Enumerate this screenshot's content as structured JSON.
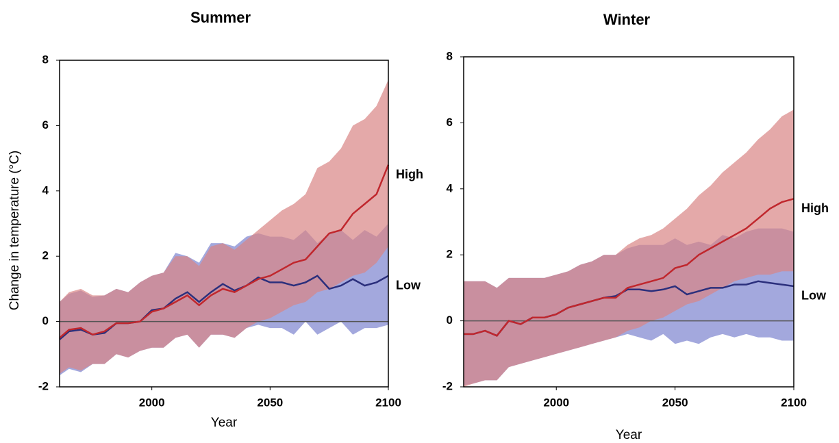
{
  "chart_data": [
    {
      "type": "band-line",
      "title": "Summer",
      "xlabel": "Year",
      "ylabel": "Change in temperature (°C)",
      "x": [
        1961,
        1965,
        1970,
        1975,
        1980,
        1985,
        1990,
        1995,
        2000,
        2005,
        2010,
        2015,
        2020,
        2025,
        2030,
        2035,
        2040,
        2045,
        2050,
        2055,
        2060,
        2065,
        2070,
        2075,
        2080,
        2085,
        2090,
        2095,
        2100
      ],
      "xlim": [
        1961,
        2100
      ],
      "xticks": [
        2000,
        2050,
        2100
      ],
      "ylim": [
        -2,
        8
      ],
      "yticks": [
        -2,
        0,
        2,
        4,
        6,
        8
      ],
      "series": [
        {
          "name": "Low",
          "color": "#2b2f7c",
          "band_color": "#7c83cf",
          "values": [
            -0.55,
            -0.3,
            -0.25,
            -0.4,
            -0.35,
            -0.05,
            -0.05,
            0.0,
            0.35,
            0.4,
            0.7,
            0.9,
            0.6,
            0.9,
            1.15,
            0.95,
            1.1,
            1.35,
            1.2,
            1.2,
            1.1,
            1.2,
            1.4,
            1.0,
            1.1,
            1.3,
            1.1,
            1.2,
            1.4
          ],
          "upper": [
            0.6,
            0.85,
            0.95,
            0.75,
            0.8,
            1.0,
            0.9,
            1.2,
            1.4,
            1.5,
            2.1,
            2.0,
            1.8,
            2.4,
            2.4,
            2.3,
            2.6,
            2.7,
            2.6,
            2.6,
            2.5,
            2.8,
            2.4,
            2.7,
            2.8,
            2.5,
            2.8,
            2.6,
            3.0
          ],
          "lower": [
            -1.65,
            -1.45,
            -1.55,
            -1.3,
            -1.3,
            -1.0,
            -1.1,
            -0.9,
            -0.8,
            -0.8,
            -0.5,
            -0.4,
            -0.8,
            -0.4,
            -0.4,
            -0.5,
            -0.2,
            -0.1,
            -0.2,
            -0.2,
            -0.4,
            0.0,
            -0.4,
            -0.2,
            0.0,
            -0.4,
            -0.2,
            -0.2,
            -0.1
          ]
        },
        {
          "name": "High",
          "color": "#c0272d",
          "band_color": "#d98585",
          "values": [
            -0.5,
            -0.25,
            -0.2,
            -0.4,
            -0.3,
            -0.05,
            -0.05,
            0.0,
            0.3,
            0.4,
            0.6,
            0.8,
            0.5,
            0.8,
            1.0,
            0.9,
            1.1,
            1.3,
            1.4,
            1.6,
            1.8,
            1.9,
            2.3,
            2.7,
            2.8,
            3.3,
            3.6,
            3.9,
            4.8
          ],
          "upper": [
            0.6,
            0.9,
            1.0,
            0.8,
            0.8,
            1.0,
            0.9,
            1.2,
            1.4,
            1.5,
            2.0,
            2.0,
            1.7,
            2.3,
            2.4,
            2.2,
            2.5,
            2.8,
            3.1,
            3.4,
            3.6,
            3.9,
            4.7,
            4.9,
            5.3,
            6.0,
            6.2,
            6.6,
            7.4
          ],
          "lower": [
            -1.6,
            -1.4,
            -1.5,
            -1.3,
            -1.3,
            -1.0,
            -1.1,
            -0.9,
            -0.8,
            -0.8,
            -0.5,
            -0.4,
            -0.8,
            -0.4,
            -0.4,
            -0.5,
            -0.2,
            0.0,
            0.1,
            0.3,
            0.5,
            0.6,
            0.9,
            1.0,
            1.2,
            1.4,
            1.5,
            1.8,
            2.3
          ]
        }
      ]
    },
    {
      "type": "band-line",
      "title": "Winter",
      "xlabel": "Year",
      "x": [
        1961,
        1965,
        1970,
        1975,
        1980,
        1985,
        1990,
        1995,
        2000,
        2005,
        2010,
        2015,
        2020,
        2025,
        2030,
        2035,
        2040,
        2045,
        2050,
        2055,
        2060,
        2065,
        2070,
        2075,
        2080,
        2085,
        2090,
        2095,
        2100
      ],
      "xlim": [
        1961,
        2100
      ],
      "xticks": [
        2000,
        2050,
        2100
      ],
      "ylim": [
        -2,
        8
      ],
      "yticks": [
        -2,
        0,
        2,
        4,
        6,
        8
      ],
      "series": [
        {
          "name": "Low",
          "color": "#2b2f7c",
          "band_color": "#7c83cf",
          "values": [
            -0.4,
            -0.4,
            -0.3,
            -0.45,
            0.0,
            -0.1,
            0.1,
            0.1,
            0.2,
            0.4,
            0.5,
            0.6,
            0.7,
            0.75,
            0.95,
            0.95,
            0.9,
            0.95,
            1.05,
            0.8,
            0.9,
            1.0,
            1.0,
            1.1,
            1.1,
            1.2,
            1.15,
            1.1,
            1.05
          ],
          "upper": [
            1.2,
            1.2,
            1.2,
            1.0,
            1.3,
            1.3,
            1.3,
            1.3,
            1.4,
            1.5,
            1.7,
            1.8,
            2.0,
            2.0,
            2.2,
            2.3,
            2.3,
            2.3,
            2.5,
            2.3,
            2.4,
            2.3,
            2.6,
            2.5,
            2.7,
            2.8,
            2.8,
            2.8,
            2.7
          ],
          "lower": [
            -1.95,
            -1.9,
            -1.8,
            -1.8,
            -1.4,
            -1.3,
            -1.2,
            -1.1,
            -1.0,
            -0.9,
            -0.8,
            -0.7,
            -0.6,
            -0.5,
            -0.4,
            -0.5,
            -0.6,
            -0.4,
            -0.7,
            -0.6,
            -0.7,
            -0.5,
            -0.4,
            -0.5,
            -0.4,
            -0.5,
            -0.5,
            -0.6,
            -0.6
          ]
        },
        {
          "name": "High",
          "color": "#c0272d",
          "band_color": "#d98585",
          "values": [
            -0.4,
            -0.4,
            -0.3,
            -0.45,
            0.0,
            -0.1,
            0.1,
            0.1,
            0.2,
            0.4,
            0.5,
            0.6,
            0.7,
            0.7,
            1.0,
            1.1,
            1.2,
            1.3,
            1.6,
            1.7,
            2.0,
            2.2,
            2.4,
            2.6,
            2.8,
            3.1,
            3.4,
            3.6,
            3.7
          ],
          "upper": [
            1.2,
            1.2,
            1.2,
            1.0,
            1.3,
            1.3,
            1.3,
            1.3,
            1.4,
            1.5,
            1.7,
            1.8,
            2.0,
            2.0,
            2.3,
            2.5,
            2.6,
            2.8,
            3.1,
            3.4,
            3.8,
            4.1,
            4.5,
            4.8,
            5.1,
            5.5,
            5.8,
            6.2,
            6.4
          ],
          "lower": [
            -2.0,
            -1.9,
            -1.8,
            -1.8,
            -1.4,
            -1.3,
            -1.2,
            -1.1,
            -1.0,
            -0.9,
            -0.8,
            -0.7,
            -0.6,
            -0.5,
            -0.3,
            -0.2,
            0.0,
            0.1,
            0.3,
            0.5,
            0.6,
            0.8,
            1.0,
            1.2,
            1.3,
            1.4,
            1.4,
            1.5,
            1.5
          ]
        }
      ]
    }
  ]
}
